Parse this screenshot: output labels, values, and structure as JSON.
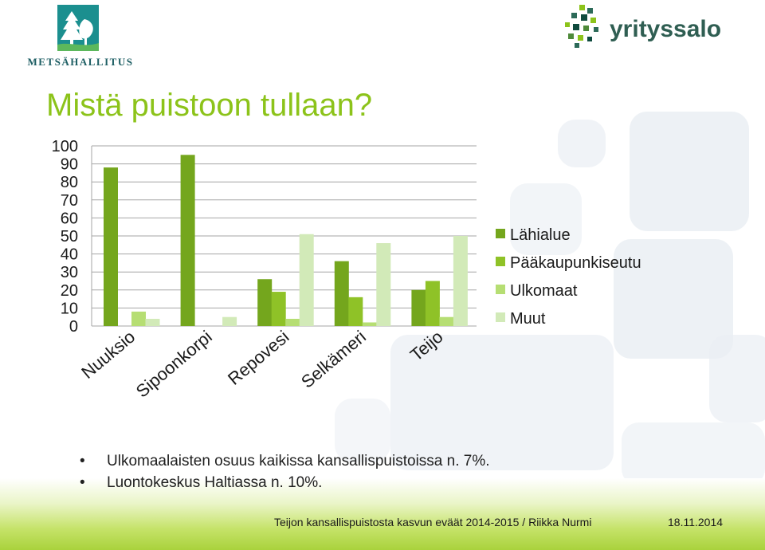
{
  "title": "Mistä puistoon tullaan?",
  "logos": {
    "left_text": "METSÄHALLITUS",
    "right_text": "yrityssalo"
  },
  "colors": {
    "title": "#8cc31a",
    "lahialue": "#74a61d",
    "paakaupunkiseutu": "#8fc227",
    "ulkomaat": "#b6de73",
    "muut": "#d2eab8"
  },
  "chart_data": {
    "type": "bar",
    "categories": [
      "Nuuksio",
      "Sipoonkorpi",
      "Repovesi",
      "Selkämeri",
      "Teijo"
    ],
    "series": [
      {
        "name": "Lähialue",
        "values": [
          88,
          95,
          26,
          36,
          20
        ]
      },
      {
        "name": "Pääkaupunkiseutu",
        "values": [
          0,
          0,
          19,
          16,
          25
        ]
      },
      {
        "name": "Ulkomaat",
        "values": [
          8,
          0,
          4,
          2,
          5
        ]
      },
      {
        "name": "Muut",
        "values": [
          4,
          5,
          51,
          46,
          50
        ]
      }
    ],
    "ylim": [
      0,
      100
    ],
    "yticks": [
      0,
      10,
      20,
      30,
      40,
      50,
      60,
      70,
      80,
      90,
      100
    ],
    "grid": true,
    "legend": "right"
  },
  "bullets": [
    "Ulkomaalaisten osuus kaikissa kansallispuistoissa n. 7%.",
    "Luontokeskus Haltiassa n. 10%."
  ],
  "footer": {
    "text": "Teijon kansallispuistosta kasvun eväät 2014-2015 / Riikka Nurmi",
    "date": "18.11.2014"
  }
}
